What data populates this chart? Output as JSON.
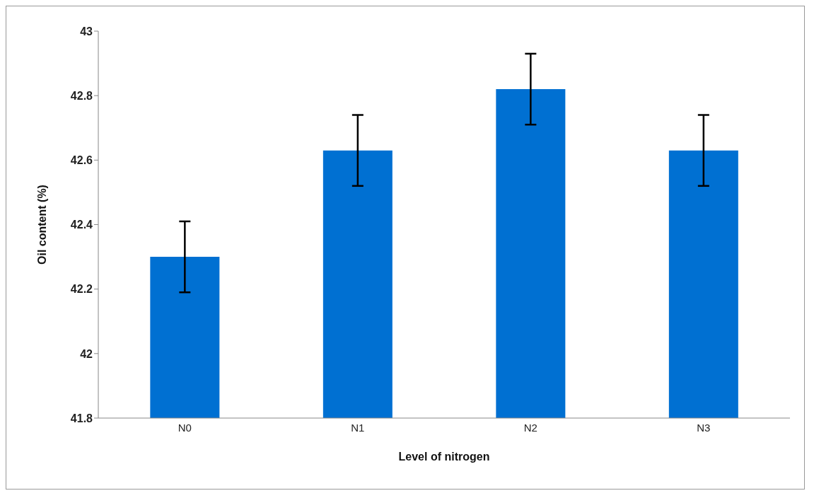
{
  "chart_data": {
    "type": "bar",
    "xlabel": "Level of nitrogen",
    "ylabel": "Oil content (%)",
    "categories": [
      "N0",
      "N1",
      "N2",
      "N3"
    ],
    "values": [
      42.3,
      42.63,
      42.82,
      42.63
    ],
    "errors": [
      0.11,
      0.11,
      0.11,
      0.11
    ],
    "color": "#0070d2",
    "ylim": [
      41.8,
      43
    ],
    "yticks": [
      41.8,
      42,
      42.2,
      42.4,
      42.6,
      42.8,
      43
    ],
    "grid": false,
    "legend": false
  }
}
